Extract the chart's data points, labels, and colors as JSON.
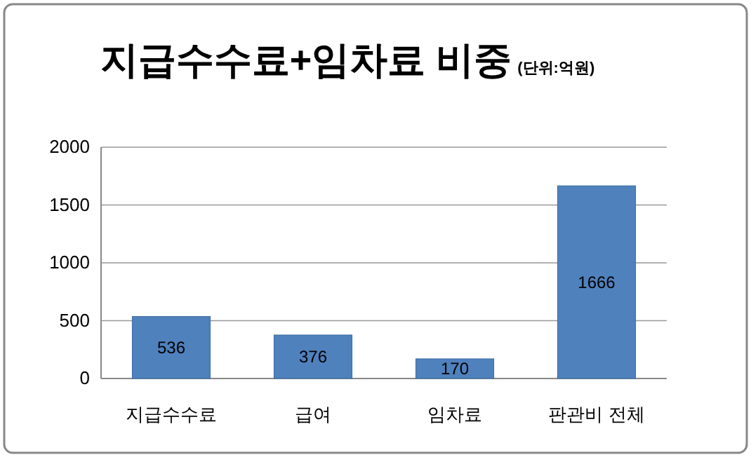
{
  "chart_data": {
    "type": "bar",
    "title": "지급수수료+임차료 비중",
    "subtitle": "(단위:억원)",
    "categories": [
      "지급수수료",
      "급여",
      "임차료",
      "판관비 전체"
    ],
    "values": [
      536,
      376,
      170,
      1666
    ],
    "color": "#4f81bd",
    "ylim": [
      0,
      2000
    ],
    "yticks": [
      0,
      500,
      1000,
      1500,
      2000
    ],
    "grid": "y",
    "data_labels": true
  }
}
